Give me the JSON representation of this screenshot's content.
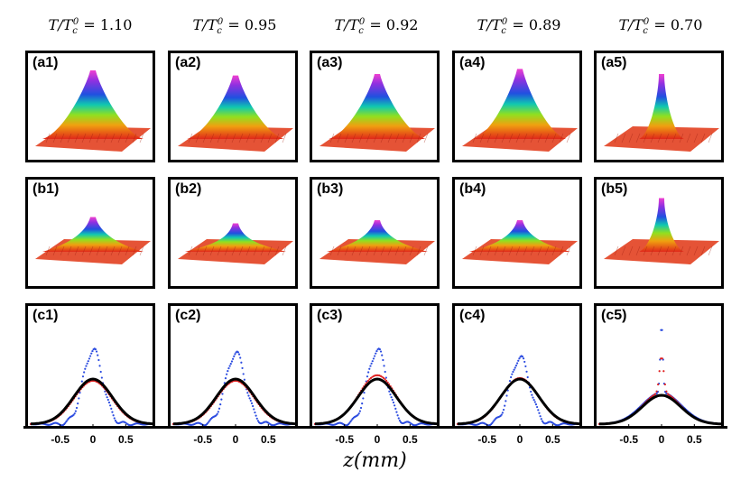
{
  "columns": [
    {
      "title": "T/T_c^0 = 1.10",
      "a": "(a1)",
      "b": "(b1)",
      "c": "(c1)",
      "peak_a": 0.95,
      "width_a": 1.0,
      "peak_b": 0.55,
      "width_b": 1.0,
      "blue": 1.0,
      "red": 0.62
    },
    {
      "title": "T/T_c^0 = 0.95",
      "a": "(a2)",
      "b": "(b2)",
      "c": "(c2)",
      "peak_a": 0.88,
      "width_a": 0.95,
      "peak_b": 0.45,
      "width_b": 1.0,
      "blue": 0.96,
      "red": 0.62
    },
    {
      "title": "T/T_c^0 = 0.92",
      "a": "(a3)",
      "b": "(b3)",
      "c": "(c3)",
      "peak_a": 0.9,
      "width_a": 0.95,
      "peak_b": 0.5,
      "width_b": 1.0,
      "blue": 1.0,
      "red": 0.7
    },
    {
      "title": "T/T_c^0 = 0.89",
      "a": "(a4)",
      "b": "(b4)",
      "c": "(c4)",
      "peak_a": 0.97,
      "width_a": 0.9,
      "peak_b": 0.5,
      "width_b": 1.0,
      "blue": 0.9,
      "red": 0.66
    },
    {
      "title": "T/T_c^0 = 0.70",
      "a": "(a5)",
      "b": "(b5)",
      "c": "(c5)",
      "peak_a": 0.9,
      "width_a": 0.35,
      "peak_b": 0.85,
      "width_b": 0.35,
      "blue": 1.0,
      "red": 0.8
    }
  ],
  "chart_data": {
    "type": "line",
    "xlabel": "z(mm)",
    "xlim": [
      -0.95,
      0.95
    ],
    "xticks": [
      "-0.5",
      "0",
      "0.5"
    ],
    "series": [
      {
        "color": "#2b4be0"
      },
      {
        "color": "#e02020"
      },
      {
        "color": "#000000"
      }
    ]
  },
  "colors": {
    "frame": "#000000",
    "blue_points": "#2b4be0",
    "red_points": "#e02020",
    "fit": "#000000"
  }
}
